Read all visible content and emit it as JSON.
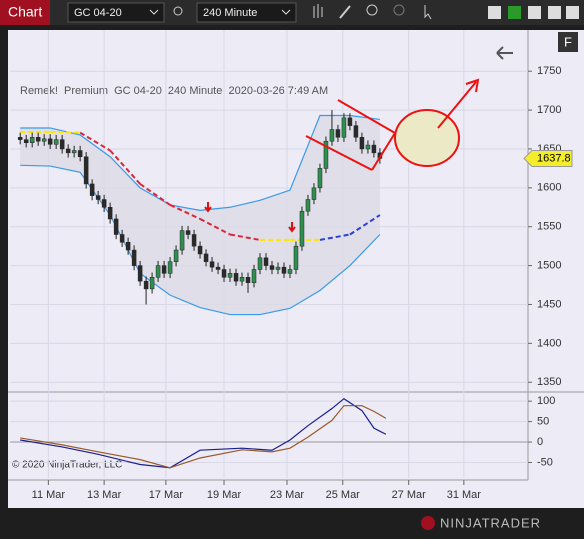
{
  "toolbar": {
    "tab": "Chart",
    "instrument": "GC 04-20",
    "interval": "240 Minute",
    "f_button": "F"
  },
  "logo": "NINJATRADER",
  "chart_data": {
    "type": "candlestick",
    "subtitle": "Remek!  Premium  GC 04-20  240 Minute  2020-03-26 7:49 AM",
    "copyright": "© 2020 NinjaTrader, LLC",
    "last_price": 1637.8,
    "up_color": "#2f8f4e",
    "down_color": "#2a2a2a",
    "xlim": [
      -1.7,
      84.7
    ],
    "xticks": [
      {
        "value": 4.7,
        "label": "11 Mar"
      },
      {
        "value": 14,
        "label": "13 Mar"
      },
      {
        "value": 24.3,
        "label": "17 Mar"
      },
      {
        "value": 34,
        "label": "19 Mar"
      },
      {
        "value": 44.5,
        "label": "23 Mar"
      },
      {
        "value": 53.8,
        "label": "25 Mar"
      },
      {
        "value": 64.8,
        "label": "27 Mar"
      },
      {
        "value": 74,
        "label": "31 Mar"
      }
    ],
    "ylim": [
      1340,
      1803
    ],
    "yticks": [
      1350,
      1400,
      1450,
      1500,
      1550,
      1600,
      1650,
      1700,
      1750
    ],
    "grid": true,
    "candles": [
      [
        1665,
        1671,
        1656,
        1662
      ],
      [
        1662,
        1668,
        1652,
        1658
      ],
      [
        1658,
        1671,
        1652,
        1665
      ],
      [
        1665,
        1671,
        1654,
        1660
      ],
      [
        1660,
        1669,
        1654,
        1663
      ],
      [
        1663,
        1669,
        1650,
        1656
      ],
      [
        1656,
        1668,
        1650,
        1662
      ],
      [
        1662,
        1668,
        1644,
        1650
      ],
      [
        1650,
        1656,
        1639,
        1645
      ],
      [
        1645,
        1654,
        1639,
        1648
      ],
      [
        1648,
        1654,
        1634,
        1640
      ],
      [
        1640,
        1646,
        1599,
        1605
      ],
      [
        1605,
        1611,
        1584,
        1590
      ],
      [
        1590,
        1596,
        1579,
        1585
      ],
      [
        1585,
        1591,
        1569,
        1575
      ],
      [
        1575,
        1581,
        1554,
        1560
      ],
      [
        1560,
        1566,
        1534,
        1540
      ],
      [
        1540,
        1546,
        1524,
        1530
      ],
      [
        1530,
        1536,
        1514,
        1520
      ],
      [
        1520,
        1526,
        1494,
        1500
      ],
      [
        1500,
        1506,
        1474,
        1480
      ],
      [
        1480,
        1486,
        1450,
        1470
      ],
      [
        1470,
        1491,
        1464,
        1485
      ],
      [
        1485,
        1506,
        1479,
        1500
      ],
      [
        1500,
        1506,
        1484,
        1490
      ],
      [
        1490,
        1511,
        1484,
        1505
      ],
      [
        1505,
        1526,
        1499,
        1520
      ],
      [
        1520,
        1551,
        1514,
        1545
      ],
      [
        1545,
        1551,
        1534,
        1540
      ],
      [
        1540,
        1546,
        1519,
        1525
      ],
      [
        1525,
        1531,
        1509,
        1515
      ],
      [
        1515,
        1521,
        1499,
        1505
      ],
      [
        1505,
        1511,
        1492,
        1498
      ],
      [
        1498,
        1504,
        1489,
        1495
      ],
      [
        1495,
        1501,
        1479,
        1485
      ],
      [
        1485,
        1496,
        1479,
        1490
      ],
      [
        1490,
        1496,
        1474,
        1480
      ],
      [
        1480,
        1491,
        1474,
        1485
      ],
      [
        1485,
        1491,
        1465,
        1478
      ],
      [
        1478,
        1501,
        1472,
        1495
      ],
      [
        1495,
        1516,
        1489,
        1510
      ],
      [
        1510,
        1516,
        1494,
        1500
      ],
      [
        1500,
        1506,
        1489,
        1495
      ],
      [
        1495,
        1504,
        1489,
        1498
      ],
      [
        1498,
        1504,
        1484,
        1490
      ],
      [
        1490,
        1501,
        1484,
        1495
      ],
      [
        1495,
        1531,
        1489,
        1525
      ],
      [
        1525,
        1576,
        1519,
        1570
      ],
      [
        1570,
        1591,
        1564,
        1585
      ],
      [
        1585,
        1606,
        1579,
        1600
      ],
      [
        1600,
        1631,
        1594,
        1625
      ],
      [
        1625,
        1666,
        1619,
        1660
      ],
      [
        1660,
        1700,
        1654,
        1675
      ],
      [
        1675,
        1681,
        1659,
        1665
      ],
      [
        1665,
        1696,
        1659,
        1690
      ],
      [
        1690,
        1696,
        1674,
        1680
      ],
      [
        1680,
        1686,
        1659,
        1665
      ],
      [
        1665,
        1671,
        1644,
        1650
      ],
      [
        1650,
        1661,
        1644,
        1655
      ],
      [
        1655,
        1661,
        1639,
        1645
      ],
      [
        1645,
        1651,
        1631,
        1637.8
      ]
    ],
    "band_x": [
      0,
      5,
      10,
      15,
      20,
      25,
      30,
      35,
      40,
      45,
      50,
      55,
      60
    ],
    "band_color": "#3a9ae8",
    "upper_band": [
      1677,
      1677,
      1668,
      1640,
      1600,
      1578,
      1571,
      1575,
      1584,
      1597,
      1693,
      1693,
      1688
    ],
    "lower_band": [
      1629,
      1628,
      1620,
      1565,
      1490,
      1462,
      1446,
      1437,
      1437,
      1445,
      1468,
      1500,
      1540
    ],
    "mid_line": [
      1672,
      1672,
      1671,
      1648,
      1605,
      1578,
      1560,
      1540,
      1533,
      1533,
      1533,
      1540,
      1565
    ],
    "mid_colors": [
      "#ffe600",
      "#ffe600",
      "#d8283c",
      "#d8283c",
      "#d8283c",
      "#d8283c",
      "#d8283c",
      "#d8283c",
      "#ffe600",
      "#ffe600",
      "#2b3fd0",
      "#2b3fd0"
    ],
    "osc_ylim": [
      -88,
      120
    ],
    "osc_yticks": [
      -50,
      0,
      50,
      100
    ],
    "osc_x": [
      0,
      7,
      13,
      20,
      25,
      30,
      37,
      42,
      45,
      48,
      52,
      54,
      57,
      59,
      61
    ],
    "osc_series": [
      {
        "color": "#1a1f8c",
        "values": [
          5,
          -12,
          -30,
          -55,
          -63,
          -20,
          -15,
          -20,
          5,
          40,
          82,
          106,
          77,
          34,
          19
        ]
      },
      {
        "color": "#9a5a2a",
        "values": [
          10,
          -7,
          -24,
          -43,
          -63,
          -39,
          -19,
          -24,
          -15,
          12,
          53,
          89,
          89,
          75,
          58
        ]
      }
    ]
  }
}
